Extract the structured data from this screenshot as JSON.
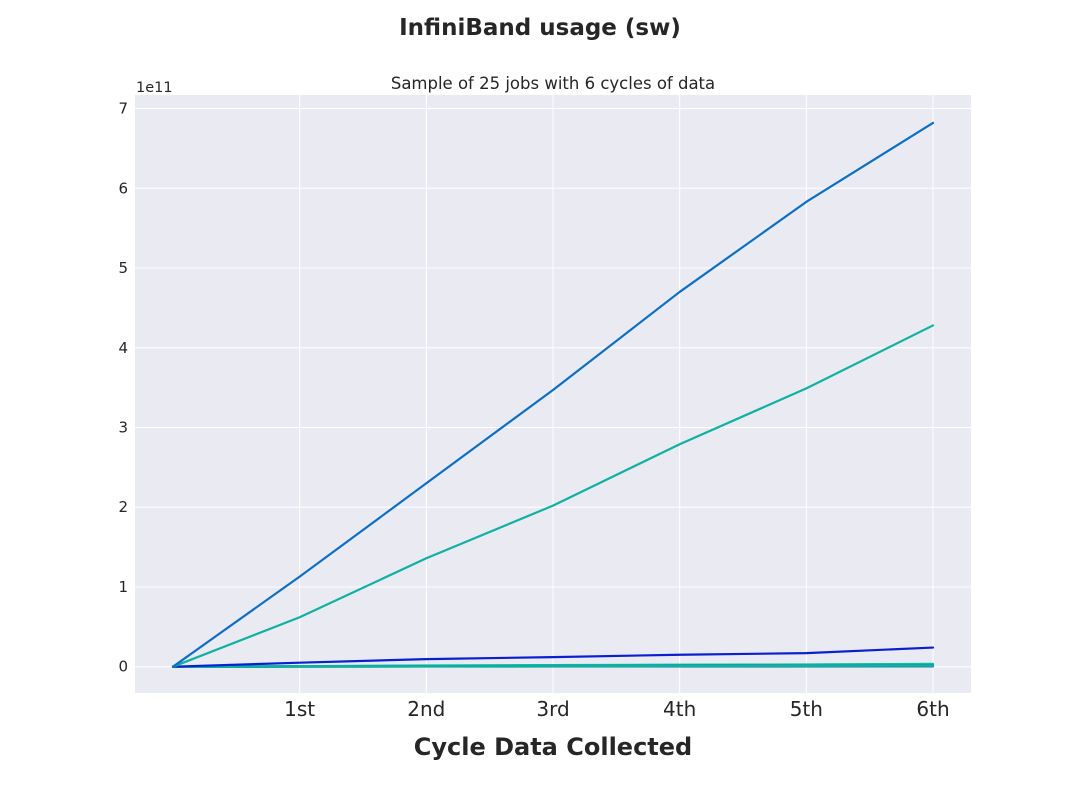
{
  "chart_data": {
    "type": "line",
    "title": "InfiniBand usage (sw)",
    "subtitle": "Sample of 25 jobs with 6 cycles of data",
    "xlabel": "Cycle Data Collected",
    "ylabel": "",
    "y_offset_label": "1e11",
    "x": [
      0,
      1,
      2,
      3,
      4,
      5,
      6
    ],
    "x_tick_values": [
      1,
      2,
      3,
      4,
      5,
      6
    ],
    "x_tick_labels": [
      "1st",
      "2nd",
      "3rd",
      "4th",
      "5th",
      "6th"
    ],
    "xlim": [
      -0.3,
      6.3
    ],
    "y_tick_values": [
      0,
      1,
      2,
      3,
      4,
      5,
      6,
      7
    ],
    "y_tick_labels": [
      "0",
      "1",
      "2",
      "3",
      "4",
      "5",
      "6",
      "7"
    ],
    "y_scale": 100000000000.0,
    "ylim": [
      -0.33,
      7.17
    ],
    "grid": true,
    "background": "#eaeaf2",
    "grid_color": "#ffffff",
    "series": [
      {
        "color": "#1f8a8a",
        "values": [
          0,
          0.001,
          0.002,
          0.003,
          0.003,
          0.004,
          0.005
        ]
      },
      {
        "color": "#0f4fa8",
        "values": [
          0,
          0.002,
          0.003,
          0.004,
          0.005,
          0.006,
          0.007
        ]
      },
      {
        "color": "#00b0a0",
        "values": [
          0,
          0.003,
          0.008,
          0.012,
          0.015,
          0.018,
          0.022
        ]
      },
      {
        "color": "#0b6fc4",
        "values": [
          0,
          0.004,
          0.01,
          0.015,
          0.018,
          0.02,
          0.025
        ]
      },
      {
        "color": "#1fa0c0",
        "values": [
          0,
          0.005,
          0.012,
          0.018,
          0.022,
          0.026,
          0.03
        ]
      },
      {
        "color": "#0cc0a8",
        "values": [
          0,
          0.006,
          0.015,
          0.02,
          0.024,
          0.028,
          0.035
        ]
      },
      {
        "color": "#0a7ab8",
        "values": [
          0,
          0.003,
          0.006,
          0.009,
          0.012,
          0.014,
          0.016
        ]
      },
      {
        "color": "#0cb49c",
        "values": [
          0,
          0.002,
          0.004,
          0.006,
          0.008,
          0.01,
          0.012
        ]
      },
      {
        "color": "#0a1fd0",
        "values": [
          0,
          0.05,
          0.095,
          0.12,
          0.15,
          0.17,
          0.24
        ]
      },
      {
        "color": "#0fb1a1",
        "values": [
          0,
          0.62,
          1.36,
          2.02,
          2.79,
          3.49,
          4.28
        ]
      },
      {
        "color": "#0b6fc4",
        "values": [
          0,
          1.13,
          2.3,
          3.47,
          4.7,
          5.83,
          6.82
        ]
      }
    ]
  }
}
